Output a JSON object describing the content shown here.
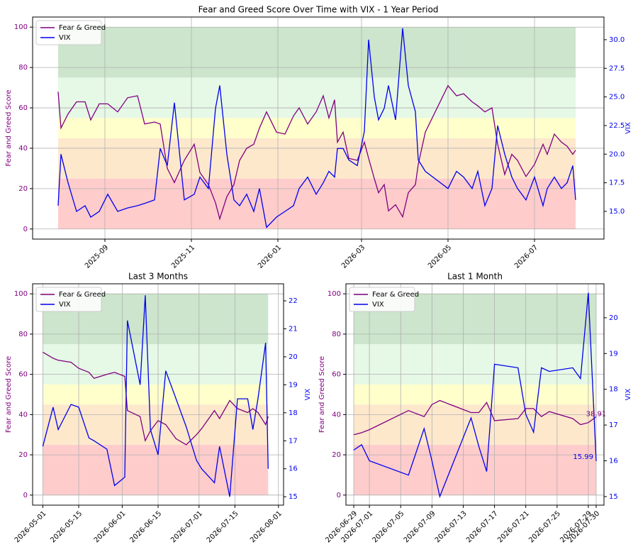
{
  "chart_data": [
    {
      "type": "line",
      "title": "Fear and Greed Score Over Time with VIX - 1 Year Period",
      "ylabel": "Fear and Greed Score",
      "y2label": "VIX",
      "legend": "upper left",
      "grid": true,
      "xlim": [
        "2025-07-12",
        "2026-08-19"
      ],
      "xticks": [
        "2025-09",
        "2025-11",
        "2026-01",
        "2026-03",
        "2026-05",
        "2026-07"
      ],
      "ylim": [
        -5,
        105
      ],
      "yticks": [
        0,
        20,
        40,
        60,
        80,
        100
      ],
      "y2lim": [
        12.58,
        31.98
      ],
      "y2ticks": [
        {
          "value": 15,
          "label": "15.0"
        },
        {
          "value": 17.5,
          "label": "17.5"
        },
        {
          "value": 20,
          "label": "20.0"
        },
        {
          "value": 22.5,
          "label": "22.5"
        },
        {
          "value": 25,
          "label": "25.0"
        },
        {
          "value": 27.5,
          "label": "27.5"
        },
        {
          "value": 30,
          "label": "30.0"
        }
      ],
      "bands": [
        {
          "from": 0,
          "to": 25,
          "color": "#ffcccc"
        },
        {
          "from": 25,
          "to": 45,
          "color": "#fde8cc"
        },
        {
          "from": 45,
          "to": 55,
          "color": "#ffffcc"
        },
        {
          "from": 55,
          "to": 75,
          "color": "#e6f8e6"
        },
        {
          "from": 75,
          "to": 100,
          "color": "#cce5cc"
        }
      ],
      "x": [
        "2025-07-30",
        "2025-08-01",
        "2025-08-06",
        "2025-08-12",
        "2025-08-18",
        "2025-08-22",
        "2025-08-28",
        "2025-09-03",
        "2025-09-10",
        "2025-09-17",
        "2025-09-24",
        "2025-09-29",
        "2025-10-06",
        "2025-10-10",
        "2025-10-15",
        "2025-10-20",
        "2025-10-27",
        "2025-11-03",
        "2025-11-07",
        "2025-11-13",
        "2025-11-18",
        "2025-11-21",
        "2025-11-26",
        "2025-12-01",
        "2025-12-05",
        "2025-12-10",
        "2025-12-15",
        "2025-12-19",
        "2025-12-24",
        "2025-12-31",
        "2026-01-06",
        "2026-01-12",
        "2026-01-16",
        "2026-01-22",
        "2026-01-28",
        "2026-02-02",
        "2026-02-06",
        "2026-02-10",
        "2026-02-12",
        "2026-02-16",
        "2026-02-20",
        "2026-02-26",
        "2026-03-03",
        "2026-03-06",
        "2026-03-10",
        "2026-03-13",
        "2026-03-17",
        "2026-03-20",
        "2026-03-25",
        "2026-03-30",
        "2026-04-03",
        "2026-04-08",
        "2026-04-10",
        "2026-04-15",
        "2026-05-01",
        "2026-05-07",
        "2026-05-12",
        "2026-05-18",
        "2026-05-22",
        "2026-05-27",
        "2026-06-01",
        "2026-06-05",
        "2026-06-10",
        "2026-06-15",
        "2026-06-19",
        "2026-06-25",
        "2026-07-01",
        "2026-07-07",
        "2026-07-10",
        "2026-07-15",
        "2026-07-20",
        "2026-07-24",
        "2026-07-28",
        "2026-07-30"
      ],
      "series": [
        {
          "name": "Fear & Greed",
          "color": "#800080",
          "axis": "y",
          "values": [
            68,
            50,
            57,
            63,
            63,
            54,
            62,
            62,
            58,
            65,
            66,
            52,
            53,
            52,
            30,
            23,
            34,
            42,
            28,
            22,
            13,
            5,
            16,
            22,
            34,
            40,
            42,
            50,
            58,
            48,
            47,
            56,
            60,
            52,
            58,
            66,
            55,
            64,
            43,
            48,
            35,
            34,
            43,
            35,
            25,
            18,
            22,
            9,
            12,
            6,
            18,
            22,
            32,
            48,
            71,
            66,
            67,
            63,
            61,
            58,
            60,
            42,
            27,
            37,
            34,
            26,
            32,
            42,
            37,
            47,
            43,
            41,
            37,
            39
          ]
        },
        {
          "name": "VIX",
          "color": "#0000ee",
          "axis": "y2",
          "values": [
            15.5,
            20,
            17.5,
            15,
            15.5,
            14.5,
            15,
            16.5,
            15,
            15.3,
            15.5,
            15.7,
            16,
            20.5,
            19,
            24.5,
            16,
            16.5,
            18,
            17,
            24,
            26,
            20,
            16,
            15.5,
            16.5,
            15,
            17,
            13.6,
            14.5,
            15,
            15.5,
            17,
            18,
            16.5,
            17.5,
            18.5,
            18,
            20.5,
            20.5,
            19.5,
            19,
            22,
            30,
            25,
            23,
            24,
            26,
            23,
            31,
            26,
            23.7,
            19.5,
            18.5,
            17,
            18.5,
            18,
            17,
            18.5,
            15.5,
            17,
            22.5,
            20,
            18,
            17,
            16,
            18,
            15.5,
            17,
            18,
            17,
            17.5,
            19,
            16
          ]
        }
      ]
    },
    {
      "type": "line",
      "title": "Last 3 Months",
      "ylabel": "Fear and Greed Score",
      "y2label": "VIX",
      "legend": "upper left",
      "grid": true,
      "xlim": [
        "2026-04-27",
        "2026-08-03"
      ],
      "xticks": [
        "2026-05-01",
        "2026-05-15",
        "2026-06-01",
        "2026-06-15",
        "2026-07-01",
        "2026-07-15",
        "2026-08-01"
      ],
      "ylim": [
        -5,
        105
      ],
      "yticks": [
        0,
        20,
        40,
        60,
        80,
        100
      ],
      "y2lim": [
        14.7,
        22.61
      ],
      "y2ticks": [
        15,
        16,
        17,
        18,
        19,
        20,
        21,
        22
      ],
      "bands": [
        {
          "from": 0,
          "to": 25,
          "color": "#ffcccc"
        },
        {
          "from": 25,
          "to": 45,
          "color": "#fde8cc"
        },
        {
          "from": 45,
          "to": 55,
          "color": "#ffffcc"
        },
        {
          "from": 55,
          "to": 75,
          "color": "#e6f8e6"
        },
        {
          "from": 75,
          "to": 100,
          "color": "#cce5cc"
        }
      ],
      "x": [
        "2026-05-01",
        "2026-05-05",
        "2026-05-07",
        "2026-05-12",
        "2026-05-15",
        "2026-05-19",
        "2026-05-21",
        "2026-05-26",
        "2026-05-29",
        "2026-06-02",
        "2026-06-03",
        "2026-06-08",
        "2026-06-10",
        "2026-06-12",
        "2026-06-15",
        "2026-06-18",
        "2026-06-22",
        "2026-06-26",
        "2026-06-30",
        "2026-07-02",
        "2026-07-07",
        "2026-07-09",
        "2026-07-13",
        "2026-07-16",
        "2026-07-20",
        "2026-07-22",
        "2026-07-24",
        "2026-07-27",
        "2026-07-28"
      ],
      "series": [
        {
          "name": "Fear & Greed",
          "color": "#800080",
          "axis": "y",
          "values": [
            71,
            68,
            67,
            66,
            63,
            61,
            58,
            60,
            61,
            59,
            42,
            39,
            27,
            32,
            37,
            35,
            28,
            25,
            30,
            33,
            42,
            38,
            47,
            43,
            41,
            43,
            41,
            35,
            39
          ]
        },
        {
          "name": "VIX",
          "color": "#0000ee",
          "axis": "y2",
          "values": [
            16.8,
            18.2,
            17.4,
            18.3,
            18.2,
            17.1,
            17,
            16.7,
            15.4,
            15.7,
            21.3,
            19,
            22.2,
            17.4,
            16.5,
            19.5,
            18.5,
            17.5,
            16.3,
            16,
            15.5,
            16.8,
            15,
            18.5,
            18.5,
            17.4,
            18.5,
            20.5,
            16
          ]
        }
      ]
    },
    {
      "type": "line",
      "title": "Last 1 Month",
      "ylabel": "Fear and Greed Score",
      "y2label": "VIX",
      "legend": "upper left",
      "grid": true,
      "xlim": [
        "2026-06-28",
        "2026-07-31"
      ],
      "xticks": [
        "2026-06-29",
        "2026-07-01",
        "2026-07-05",
        "2026-07-09",
        "2026-07-13",
        "2026-07-17",
        "2026-07-21",
        "2026-07-25",
        "2026-07-29",
        "2026-07-30"
      ],
      "ylim": [
        -5,
        105
      ],
      "yticks": [
        0,
        20,
        40,
        60,
        80,
        100
      ],
      "y2lim": [
        14.76,
        20.95
      ],
      "y2ticks": [
        15,
        16,
        17,
        18,
        19,
        20
      ],
      "bands": [
        {
          "from": 0,
          "to": 25,
          "color": "#ffcccc"
        },
        {
          "from": 25,
          "to": 45,
          "color": "#fde8cc"
        },
        {
          "from": 45,
          "to": 55,
          "color": "#ffffcc"
        },
        {
          "from": 55,
          "to": 75,
          "color": "#e6f8e6"
        },
        {
          "from": 75,
          "to": 100,
          "color": "#cce5cc"
        }
      ],
      "x": [
        "2026-06-29",
        "2026-06-30",
        "2026-07-01",
        "2026-07-06",
        "2026-07-08",
        "2026-07-09",
        "2026-07-10",
        "2026-07-14",
        "2026-07-15",
        "2026-07-16",
        "2026-07-17",
        "2026-07-20",
        "2026-07-21",
        "2026-07-22",
        "2026-07-23",
        "2026-07-24",
        "2026-07-27",
        "2026-07-28",
        "2026-07-29",
        "2026-07-30"
      ],
      "series": [
        {
          "name": "Fear & Greed",
          "color": "#800080",
          "axis": "y",
          "values": [
            30,
            31,
            32.5,
            42,
            39,
            45,
            47,
            41,
            41,
            46,
            37,
            38,
            43,
            43,
            39,
            41.5,
            38,
            35,
            36,
            38.91
          ]
        },
        {
          "name": "VIX",
          "color": "#0000ee",
          "axis": "y2",
          "values": [
            16.3,
            16.45,
            16.0,
            15.6,
            16.9,
            16.0,
            15.0,
            17.2,
            16.4,
            15.7,
            18.7,
            18.6,
            17.3,
            16.8,
            18.6,
            18.5,
            18.6,
            18.3,
            20.7,
            15.99
          ]
        }
      ],
      "annotations": [
        {
          "label": "38.91",
          "value": 38.91,
          "axis": "y",
          "x": "2026-07-30",
          "color": "#800080"
        },
        {
          "label": "15.99",
          "value": 15.99,
          "axis": "y2",
          "x": "2026-07-30",
          "color": "#0000ee"
        }
      ]
    }
  ]
}
